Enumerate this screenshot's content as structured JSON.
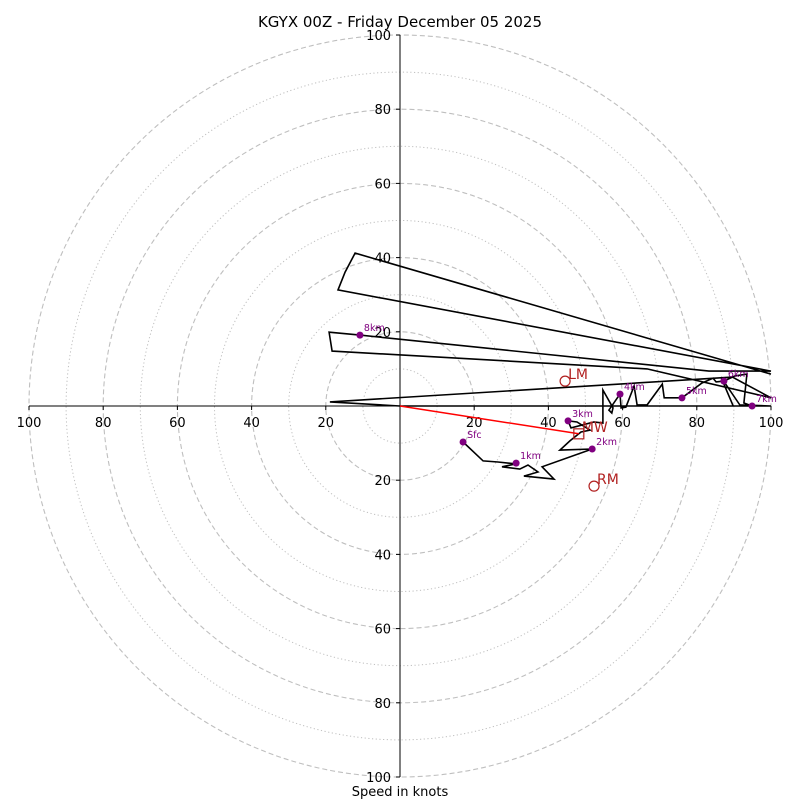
{
  "chart_data": {
    "type": "line",
    "subtype": "hodograph",
    "title": "KGYX 00Z - Friday December 05 2025",
    "xlabel": "Speed in knots",
    "ylabel": "",
    "xlim": [
      -100,
      100
    ],
    "ylim": [
      -100,
      100
    ],
    "grid": true,
    "rings_major": [
      20,
      40,
      60,
      80,
      100
    ],
    "rings_minor": [
      10,
      30,
      50,
      70,
      90
    ],
    "x_ticks": [
      {
        "value": -100,
        "label": "100"
      },
      {
        "value": -80,
        "label": "80"
      },
      {
        "value": -60,
        "label": "60"
      },
      {
        "value": -40,
        "label": "40"
      },
      {
        "value": -20,
        "label": "20"
      },
      {
        "value": 20,
        "label": "20"
      },
      {
        "value": 40,
        "label": "40"
      },
      {
        "value": 60,
        "label": "60"
      },
      {
        "value": 80,
        "label": "80"
      },
      {
        "value": 100,
        "label": "100"
      }
    ],
    "y_ticks": [
      {
        "value": 100,
        "label": "100"
      },
      {
        "value": 80,
        "label": "80"
      },
      {
        "value": 60,
        "label": "60"
      },
      {
        "value": 40,
        "label": "40"
      },
      {
        "value": 20,
        "label": "20"
      },
      {
        "value": -20,
        "label": "20"
      },
      {
        "value": -40,
        "label": "40"
      },
      {
        "value": -60,
        "label": "60"
      },
      {
        "value": -80,
        "label": "80"
      },
      {
        "value": -100,
        "label": "100"
      }
    ],
    "series": [
      {
        "name": "hodograph",
        "color": "#000000",
        "points": [
          [
            17.0,
            -9.7
          ],
          [
            22.4,
            -14.8
          ],
          [
            26.4,
            -15.1
          ],
          [
            31.3,
            -15.6
          ],
          [
            27.5,
            -16.4
          ],
          [
            32.3,
            -17.0
          ],
          [
            34.5,
            -15.9
          ],
          [
            37.2,
            -17.8
          ],
          [
            33.4,
            -18.9
          ],
          [
            41.5,
            -19.7
          ],
          [
            38.3,
            -16.4
          ],
          [
            51.8,
            -11.6
          ],
          [
            43.1,
            -11.9
          ],
          [
            45.8,
            -9.4
          ],
          [
            48.8,
            -7.0
          ],
          [
            51.2,
            -6.5
          ],
          [
            47.7,
            -4.3
          ],
          [
            45.3,
            -4.0
          ],
          [
            46.1,
            -5.9
          ],
          [
            52.3,
            -4.3
          ],
          [
            54.7,
            -4.6
          ],
          [
            54.7,
            4.3
          ],
          [
            57.4,
            -0.5
          ],
          [
            57.1,
            -1.9
          ],
          [
            56.3,
            -1.1
          ],
          [
            59.3,
            3.2
          ],
          [
            59.6,
            -0.5
          ],
          [
            60.9,
            -0.3
          ],
          [
            63.1,
            5.4
          ],
          [
            63.9,
            0.3
          ],
          [
            66.6,
            0.3
          ],
          [
            70.7,
            5.9
          ],
          [
            71.2,
            2.2
          ],
          [
            75.2,
            2.2
          ],
          [
            76.0,
            2.2
          ],
          [
            81.4,
            6.2
          ],
          [
            84.4,
            7.5
          ],
          [
            85.2,
            6.5
          ],
          [
            87.3,
            6.7
          ],
          [
            90.3,
            8.1
          ],
          [
            93.5,
            8.6
          ],
          [
            92.7,
            0.8
          ],
          [
            94.9,
            0.0
          ],
          [
            89.8,
            0.0
          ],
          [
            86.5,
            7.8
          ],
          [
            91.6,
            0.3
          ],
          [
            100.0,
            0.0
          ],
          [
            60.6,
            0.0
          ],
          [
            0.0,
            0.0
          ],
          [
            -18.9,
            1.1
          ],
          [
            89.6,
            7.8
          ],
          [
            100.0,
            2.2
          ],
          [
            66.6,
            10.0
          ],
          [
            -18.3,
            14.8
          ],
          [
            -19.1,
            19.9
          ],
          [
            -10.8,
            19.1
          ],
          [
            83.3,
            9.4
          ],
          [
            100.0,
            9.4
          ],
          [
            -16.7,
            31.3
          ],
          [
            -14.8,
            36.1
          ],
          [
            -12.1,
            41.2
          ],
          [
            100.0,
            8.6
          ]
        ]
      },
      {
        "name": "bunkers-mean-wind-vector",
        "color": "#ff0000",
        "points": [
          [
            0.0,
            0.0
          ],
          [
            48.2,
            -7.5
          ]
        ]
      }
    ],
    "levels": [
      {
        "label": "Sfc",
        "u": 17.0,
        "v": -9.7
      },
      {
        "label": "1km",
        "u": 31.3,
        "v": -15.4
      },
      {
        "label": "2km",
        "u": 51.8,
        "v": -11.6
      },
      {
        "label": "3km",
        "u": 45.3,
        "v": -4.0
      },
      {
        "label": "4km",
        "u": 59.3,
        "v": 3.2
      },
      {
        "label": "5km",
        "u": 76.0,
        "v": 2.2
      },
      {
        "label": "6km",
        "u": 87.3,
        "v": 6.7
      },
      {
        "label": "7km",
        "u": 94.9,
        "v": 0.0
      },
      {
        "label": "8km",
        "u": -10.8,
        "v": 19.1
      }
    ],
    "level_color": "#800080",
    "motions": [
      {
        "label": "LM",
        "marker": "circle",
        "u": 44.5,
        "v": 6.7
      },
      {
        "label": "RM",
        "marker": "circle",
        "u": 52.3,
        "v": -21.6
      },
      {
        "label": "MW",
        "marker": "square",
        "u": 48.2,
        "v": -7.5
      }
    ],
    "motion_color": "#b22222",
    "grid_color": "#bfbfbf"
  }
}
